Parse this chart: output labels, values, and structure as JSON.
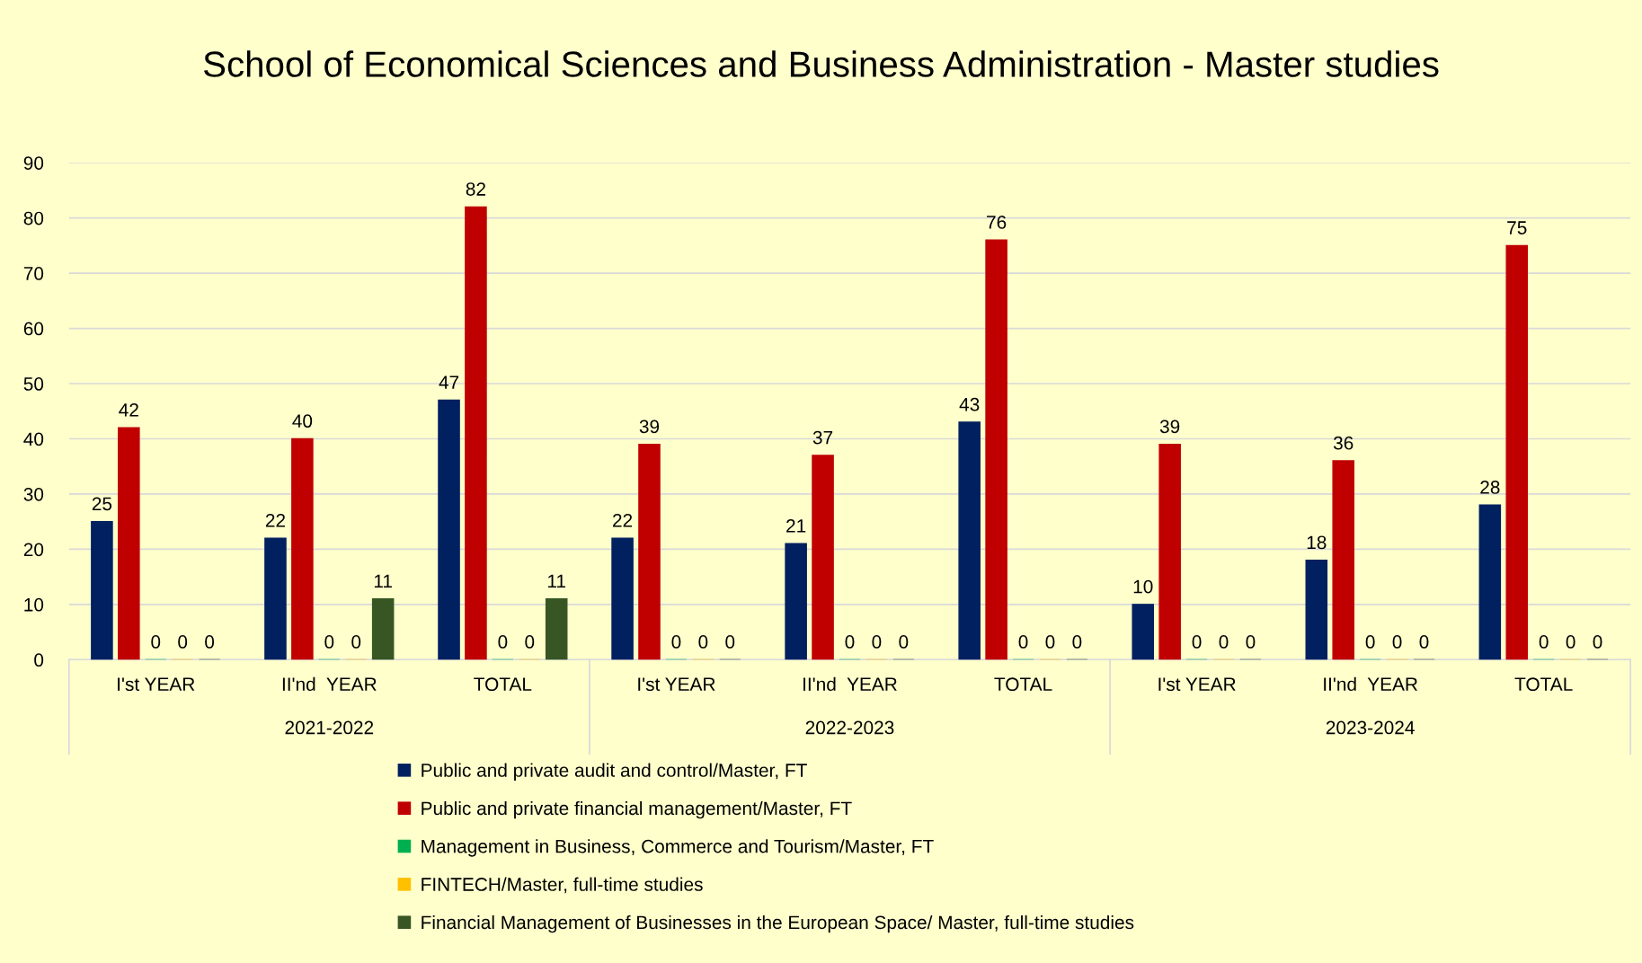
{
  "chart_data": {
    "type": "bar",
    "title": "School of Economical Sciences and Business Administration - Master studies",
    "categories": [
      "I'st YEAR",
      "II'nd  YEAR",
      "TOTAL",
      "I'st YEAR",
      "II'nd  YEAR",
      "TOTAL",
      "I'st YEAR",
      "II'nd  YEAR",
      "TOTAL"
    ],
    "annotations": [
      "2021-2022",
      "2022-2023",
      "2023-2024"
    ],
    "series": [
      {
        "name": "Public and private audit and control/Master, FT",
        "color": "#002060",
        "values": [
          25,
          22,
          47,
          22,
          21,
          43,
          10,
          18,
          28
        ]
      },
      {
        "name": "Public and private financial management/Master, FT",
        "color": "#c00000",
        "values": [
          42,
          40,
          82,
          39,
          37,
          76,
          39,
          36,
          75
        ]
      },
      {
        "name": "Management in Business, Commerce and Tourism/Master, FT",
        "color": "#00b050",
        "values": [
          0,
          0,
          0,
          0,
          0,
          0,
          0,
          0,
          0
        ]
      },
      {
        "name": "FINTECH/Master, full-time studies",
        "color": "#ffc000",
        "values": [
          0,
          0,
          0,
          0,
          0,
          0,
          0,
          0,
          0
        ]
      },
      {
        "name": "Financial Management of Businesses in the European Space/ Master, full-time studies",
        "color": "#375623",
        "values": [
          0,
          11,
          11,
          0,
          0,
          0,
          0,
          0,
          0
        ]
      }
    ],
    "ylim": [
      0,
      90
    ],
    "yticks": [
      0,
      10,
      20,
      30,
      40,
      50,
      60,
      70,
      80,
      90
    ],
    "grid": "y",
    "data_labels": true,
    "legend": "bottom"
  }
}
